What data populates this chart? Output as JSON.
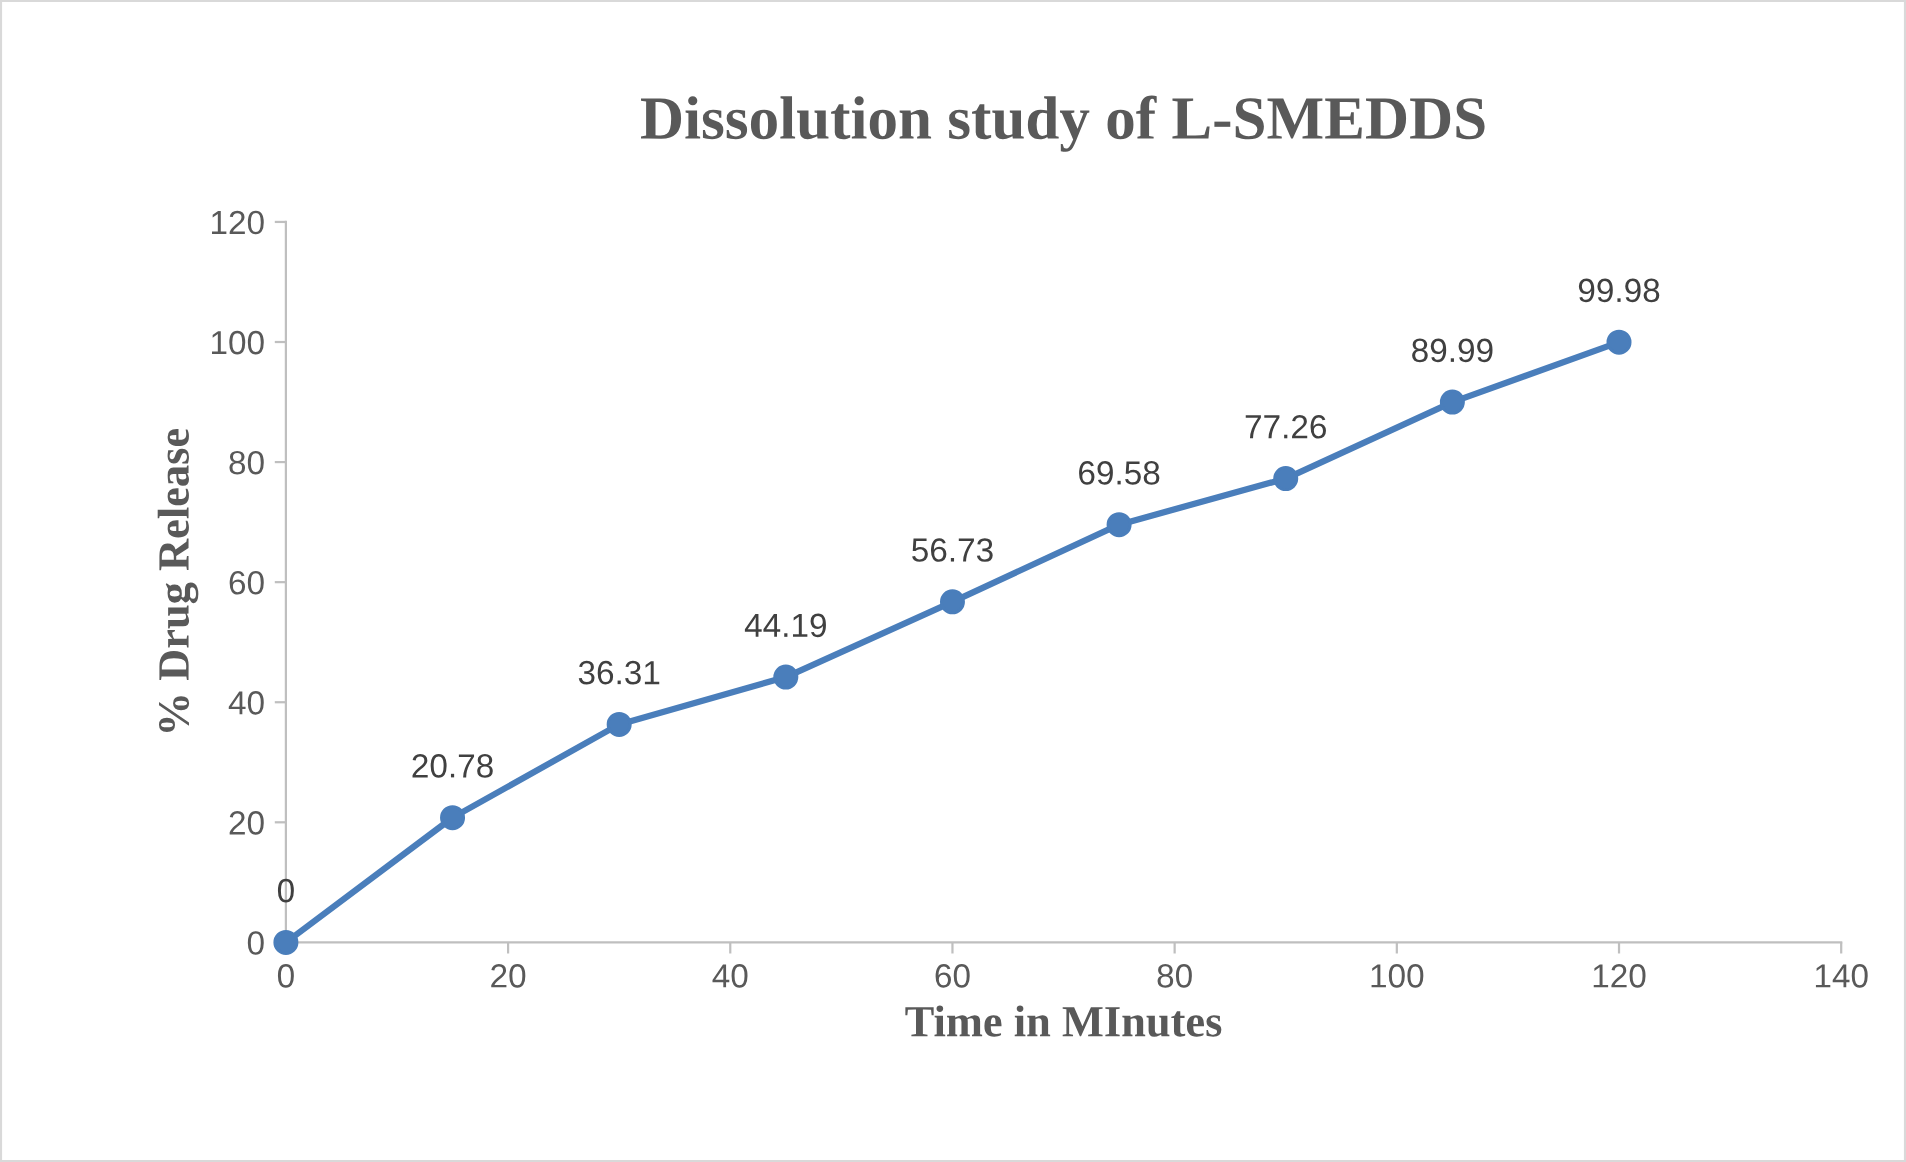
{
  "chart_data": {
    "type": "line",
    "title": "Dissolution study of L-SMEDDS",
    "xlabel": "Time in MInutes",
    "ylabel": "% Drug Release",
    "x": [
      0,
      15,
      30,
      45,
      60,
      75,
      90,
      105,
      120
    ],
    "series": [
      {
        "color": "#4a7ebb",
        "values": [
          0,
          20.78,
          36.31,
          44.19,
          56.73,
          69.58,
          77.26,
          89.99,
          99.98
        ]
      }
    ],
    "xlim": [
      0,
      140
    ],
    "xticks": [
      0,
      20,
      40,
      60,
      80,
      100,
      120,
      140
    ],
    "ylim": [
      0,
      120
    ],
    "yticks": [
      0,
      20,
      40,
      60,
      80,
      100,
      120
    ],
    "data_labels": true,
    "grid": false,
    "legend": false,
    "marker": "circle",
    "line_style": "solid"
  }
}
